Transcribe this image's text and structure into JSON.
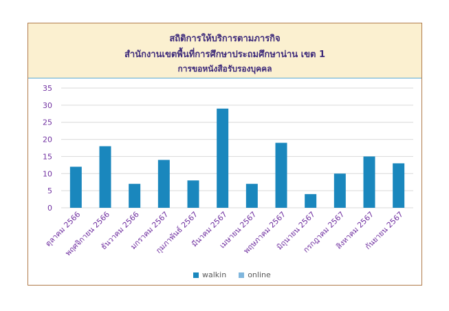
{
  "header": {
    "line1": "สถิติการให้บริการตามภารกิจ",
    "line2": "สำนักงานเขตพื้นที่การศึกษาประถมศึกษาน่าน เขต 1",
    "line3": "การขอหนังสือรับรองบุคคล"
  },
  "colors": {
    "walkin": "#1a87bd",
    "online": "#7fb6dd",
    "tick_label": "#7030a0",
    "grid": "#d9d9d9"
  },
  "chart_data": {
    "type": "bar",
    "title": "สถิติการให้บริการตามภารกิจ สำนักงานเขตพื้นที่การศึกษาประถมศึกษาน่าน เขต 1 การขอหนังสือรับรองบุคคล",
    "categories": [
      "ตุลาคม 2566",
      "พฤศจิกายน 2566",
      "ธันวาคม 2566",
      "มกราคม 2567",
      "กุมภาพันธ์ 2567",
      "มีนาคม 2567",
      "เมษายน 2567",
      "พฤษภาคม 2567",
      "มิถุนายน 2567",
      "กรกฎาคม 2567",
      "สิงหาคม 2567",
      "กันยายน 2567"
    ],
    "series": [
      {
        "name": "walkin",
        "values": [
          12,
          18,
          7,
          14,
          8,
          29,
          7,
          19,
          4,
          10,
          15,
          13
        ]
      },
      {
        "name": "online",
        "values": [
          0,
          0,
          0,
          0,
          0,
          0,
          0,
          0,
          0,
          0,
          0,
          0
        ]
      }
    ],
    "ylim": [
      0,
      35
    ],
    "yticks": [
      0,
      5,
      10,
      15,
      20,
      25,
      30,
      35
    ],
    "grid": true,
    "legend": "bottom"
  }
}
